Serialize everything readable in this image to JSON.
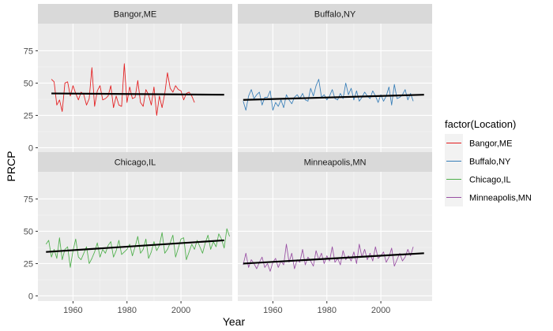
{
  "chart_data": {
    "type": "line",
    "layout": "facet-grid-2x2",
    "xlabel": "Year",
    "ylabel": "PRCP",
    "xlim": [
      1947,
      2019
    ],
    "ylim": [
      -4,
      96
    ],
    "x_ticks": [
      1960,
      1980,
      2000
    ],
    "y_ticks": [
      0,
      25,
      50,
      75
    ],
    "grid": true,
    "legend": {
      "title": "factor(Location)",
      "placement": "right",
      "items": [
        "Bangor,ME",
        "Buffalo,NY",
        "Chicago,IL",
        "Minneapolis,MN"
      ]
    },
    "trend_color": "#000000",
    "panels": [
      {
        "name": "Bangor,ME",
        "color": "#E41A1C",
        "x_start": 1952,
        "values": [
          53,
          51,
          33,
          37,
          28,
          50,
          51,
          40,
          48,
          42,
          37,
          43,
          41,
          33,
          38,
          62,
          32,
          44,
          48,
          37,
          38,
          40,
          48,
          31,
          40,
          33,
          32,
          65,
          35,
          47,
          38,
          39,
          52,
          35,
          32,
          45,
          41,
          33,
          47,
          25,
          40,
          31,
          42,
          58,
          46,
          43,
          48,
          45,
          44,
          37,
          42,
          43,
          40,
          35
        ],
        "trend": [
          [
            1952,
            42
          ],
          [
            2016,
            41
          ]
        ]
      },
      {
        "name": "Buffalo,NY",
        "color": "#377EB8",
        "x_start": 1949,
        "values": [
          36,
          29,
          40,
          45,
          38,
          41,
          43,
          33,
          39,
          39,
          44,
          29,
          35,
          32,
          37,
          31,
          41,
          37,
          34,
          39,
          41,
          38,
          42,
          37,
          36,
          46,
          40,
          48,
          53,
          39,
          41,
          37,
          40,
          45,
          38,
          37,
          42,
          38,
          50,
          41,
          46,
          37,
          44,
          36,
          39,
          43,
          40,
          38,
          44,
          40,
          35,
          41,
          36,
          40,
          47,
          33,
          49,
          38,
          39,
          41,
          45,
          37,
          42,
          36
        ],
        "trend": [
          [
            1949,
            37
          ],
          [
            2016,
            41
          ]
        ]
      },
      {
        "name": "Chicago,IL",
        "color": "#4DAF4A",
        "x_start": 1950,
        "values": [
          40,
          43,
          30,
          36,
          29,
          45,
          28,
          36,
          38,
          22,
          35,
          44,
          30,
          28,
          33,
          38,
          25,
          29,
          34,
          41,
          30,
          36,
          33,
          39,
          42,
          30,
          35,
          43,
          32,
          34,
          36,
          40,
          31,
          38,
          46,
          33,
          36,
          44,
          29,
          34,
          42,
          35,
          39,
          49,
          33,
          36,
          41,
          47,
          30,
          37,
          44,
          45,
          28,
          34,
          40,
          36,
          43,
          38,
          33,
          41,
          47,
          36,
          42,
          38,
          48,
          44,
          37,
          52,
          46
        ],
        "trend": [
          [
            1950,
            34
          ],
          [
            2016,
            43
          ]
        ]
      },
      {
        "name": "Minneapolis,MN",
        "color": "#984EA3",
        "x_start": 1949,
        "values": [
          24,
          33,
          22,
          28,
          25,
          21,
          26,
          30,
          22,
          25,
          19,
          26,
          29,
          22,
          27,
          24,
          40,
          26,
          33,
          21,
          28,
          26,
          36,
          24,
          30,
          27,
          23,
          35,
          28,
          33,
          25,
          31,
          27,
          38,
          26,
          29,
          24,
          35,
          28,
          31,
          27,
          34,
          25,
          40,
          30,
          36,
          28,
          33,
          27,
          38,
          29,
          31,
          34,
          26,
          30,
          37,
          23,
          28,
          33,
          27,
          30,
          36,
          31,
          38
        ],
        "trend": [
          [
            1949,
            25
          ],
          [
            2016,
            33
          ]
        ]
      }
    ]
  }
}
